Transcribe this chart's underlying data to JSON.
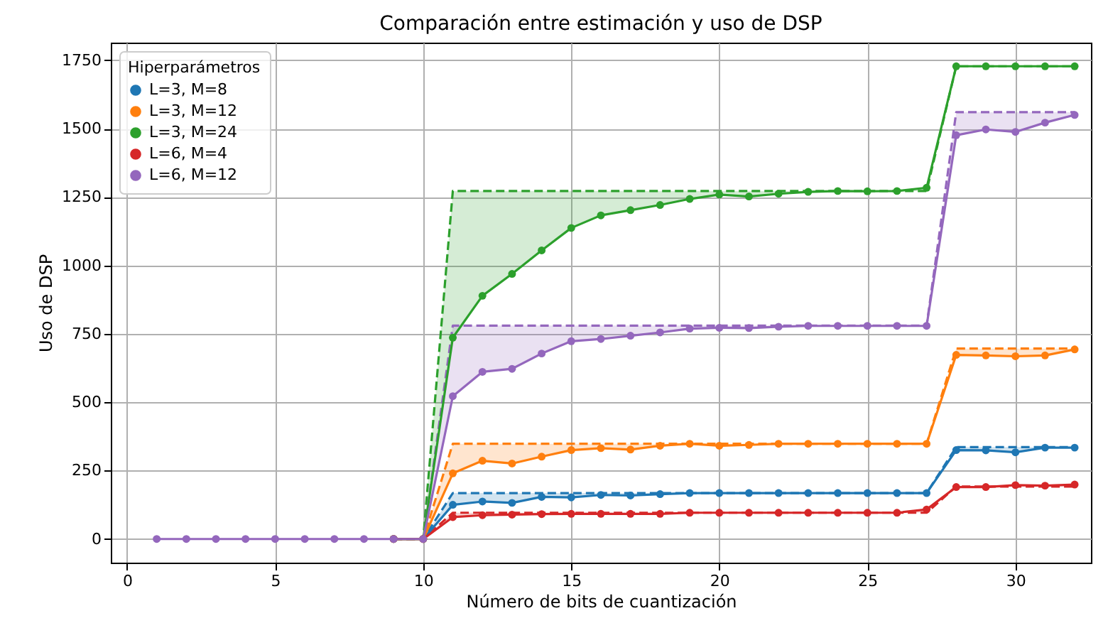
{
  "chart_data": {
    "type": "line",
    "title": "Comparación entre estimación y uso de DSP",
    "xlabel": "Número de bits de cuantización",
    "ylabel": "Uso de DSP",
    "legend_title": "Hiperparámetros",
    "legend": "top left",
    "grid": true,
    "marker": "circle",
    "line_style": "solid",
    "x": [
      1,
      2,
      3,
      4,
      5,
      6,
      7,
      8,
      9,
      10,
      11,
      12,
      13,
      14,
      15,
      16,
      17,
      18,
      19,
      20,
      21,
      22,
      23,
      24,
      25,
      26,
      27,
      28,
      29,
      30,
      31,
      32
    ],
    "xlim": [
      -0.55,
      32.55
    ],
    "xticks": [
      0,
      5,
      10,
      15,
      20,
      25,
      30
    ],
    "ylim": [
      -86.4,
      1814.4
    ],
    "yticks": [
      0,
      250,
      500,
      750,
      {
        "value": 1000,
        "label": "1000"
      },
      {
        "value": 1250,
        "label": "1250"
      },
      {
        "value": 1500,
        "label": "1500"
      },
      {
        "value": 1750,
        "label": "1750"
      }
    ],
    "series": [
      {
        "name": "L=3, M=8",
        "color": "#1f77b4",
        "values": [
          null,
          null,
          null,
          null,
          null,
          null,
          null,
          null,
          0,
          0,
          125,
          137,
          132,
          154,
          152,
          161,
          159,
          164,
          168,
          168,
          168,
          168,
          168,
          168,
          168,
          168,
          168,
          325,
          324,
          317,
          334,
          334
        ],
        "lower": [
          null,
          null,
          null,
          null,
          null,
          null,
          null,
          null,
          0,
          0,
          125,
          137,
          132,
          154,
          152,
          161,
          159,
          164,
          168,
          168,
          168,
          168,
          168,
          168,
          168,
          168,
          168,
          325,
          324,
          317,
          334,
          334
        ],
        "upper": [
          null,
          null,
          null,
          null,
          null,
          null,
          null,
          null,
          0,
          0,
          168,
          168,
          168,
          168,
          168,
          168,
          168,
          168,
          168,
          168,
          168,
          168,
          168,
          168,
          168,
          168,
          168,
          336,
          336,
          336,
          336,
          336
        ]
      },
      {
        "name": "L=3, M=12",
        "color": "#ff7f0e",
        "values": [
          null,
          null,
          null,
          null,
          null,
          null,
          null,
          null,
          0,
          0,
          240,
          286,
          276,
          301,
          325,
          332,
          327,
          341,
          348,
          341,
          344,
          348,
          348,
          348,
          348,
          348,
          348,
          673,
          671,
          668,
          671,
          693
        ],
        "lower": [
          null,
          null,
          null,
          null,
          null,
          null,
          null,
          null,
          0,
          0,
          240,
          286,
          276,
          301,
          325,
          332,
          327,
          341,
          348,
          341,
          344,
          348,
          348,
          348,
          348,
          348,
          348,
          673,
          671,
          668,
          671,
          693
        ],
        "upper": [
          null,
          null,
          null,
          null,
          null,
          null,
          null,
          null,
          0,
          0,
          348,
          348,
          348,
          348,
          348,
          348,
          348,
          348,
          348,
          348,
          348,
          348,
          348,
          348,
          348,
          348,
          348,
          696,
          696,
          696,
          696,
          696
        ]
      },
      {
        "name": "L=3, M=24",
        "color": "#2ca02c",
        "values": [
          null,
          null,
          null,
          null,
          null,
          null,
          null,
          null,
          0,
          0,
          736,
          889,
          969,
          1055,
          1137,
          1183,
          1202,
          1221,
          1243,
          1259,
          1252,
          1262,
          1269,
          1272,
          1271,
          1272,
          1284,
          1728,
          1728,
          1728,
          1728,
          1728
        ],
        "lower": [
          null,
          null,
          null,
          null,
          null,
          null,
          null,
          null,
          0,
          0,
          736,
          889,
          969,
          1055,
          1137,
          1183,
          1202,
          1221,
          1243,
          1259,
          1252,
          1262,
          1269,
          1272,
          1271,
          1272,
          1284,
          1728,
          1728,
          1728,
          1728,
          1728
        ],
        "upper": [
          null,
          null,
          null,
          null,
          null,
          null,
          null,
          null,
          0,
          0,
          1272,
          1272,
          1272,
          1272,
          1272,
          1272,
          1272,
          1272,
          1272,
          1272,
          1272,
          1272,
          1272,
          1272,
          1272,
          1272,
          1272,
          1728,
          1728,
          1728,
          1728,
          1728
        ]
      },
      {
        "name": "L=6, M=4",
        "color": "#d62728",
        "values": [
          null,
          null,
          null,
          null,
          null,
          null,
          null,
          null,
          0,
          0,
          80,
          87,
          89,
          91,
          92,
          92,
          92,
          92,
          96,
          96,
          96,
          96,
          96,
          96,
          96,
          96,
          108,
          190,
          190,
          197,
          195,
          199
        ],
        "lower": [
          null,
          null,
          null,
          null,
          null,
          null,
          null,
          null,
          0,
          0,
          80,
          87,
          89,
          91,
          92,
          92,
          92,
          92,
          96,
          96,
          96,
          96,
          96,
          96,
          96,
          96,
          108,
          190,
          190,
          197,
          195,
          199
        ],
        "upper": [
          null,
          null,
          null,
          null,
          null,
          null,
          null,
          null,
          0,
          0,
          96,
          96,
          96,
          96,
          96,
          96,
          96,
          96,
          96,
          96,
          96,
          96,
          96,
          96,
          96,
          96,
          96,
          192,
          192,
          192,
          192,
          192
        ]
      },
      {
        "name": "L=6, M=12",
        "color": "#9467bd",
        "values": [
          0,
          0,
          0,
          0,
          0,
          0,
          0,
          0,
          0,
          0,
          522,
          611,
          622,
          678,
          723,
          731,
          743,
          755,
          769,
          772,
          771,
          776,
          779,
          779,
          779,
          779,
          779,
          1476,
          1497,
          1488,
          1522,
          1550
        ],
        "lower": [
          null,
          null,
          null,
          null,
          null,
          null,
          null,
          null,
          0,
          0,
          522,
          611,
          622,
          678,
          723,
          731,
          743,
          755,
          769,
          772,
          771,
          776,
          779,
          779,
          779,
          779,
          779,
          1476,
          1497,
          1488,
          1522,
          1550
        ],
        "upper": [
          null,
          null,
          null,
          null,
          null,
          null,
          null,
          null,
          0,
          0,
          780,
          780,
          780,
          780,
          780,
          780,
          780,
          780,
          780,
          780,
          780,
          780,
          780,
          780,
          780,
          780,
          780,
          1560,
          1560,
          1560,
          1560,
          1560
        ]
      },
      {
        "color": "#1f77b4",
        "line_style": "dashed",
        "marker": "none",
        "values": [
          null,
          null,
          null,
          null,
          null,
          null,
          null,
          null,
          0,
          0,
          168,
          168,
          168,
          168,
          168,
          168,
          168,
          168,
          168,
          168,
          168,
          168,
          168,
          168,
          168,
          168,
          168,
          336,
          336,
          336,
          336,
          336
        ]
      },
      {
        "color": "#ff7f0e",
        "line_style": "dashed",
        "marker": "none",
        "values": [
          null,
          null,
          null,
          null,
          null,
          null,
          null,
          null,
          0,
          0,
          348,
          348,
          348,
          348,
          348,
          348,
          348,
          348,
          348,
          348,
          348,
          348,
          348,
          348,
          348,
          348,
          348,
          696,
          696,
          696,
          696,
          696
        ]
      },
      {
        "color": "#2ca02c",
        "line_style": "dashed",
        "marker": "none",
        "values": [
          null,
          null,
          null,
          null,
          null,
          null,
          null,
          null,
          0,
          0,
          1272,
          1272,
          1272,
          1272,
          1272,
          1272,
          1272,
          1272,
          1272,
          1272,
          1272,
          1272,
          1272,
          1272,
          1272,
          1272,
          1272,
          1728,
          1728,
          1728,
          1728,
          1728
        ]
      },
      {
        "color": "#d62728",
        "line_style": "dashed",
        "marker": "none",
        "values": [
          null,
          null,
          null,
          null,
          null,
          null,
          null,
          null,
          0,
          0,
          96,
          96,
          96,
          96,
          96,
          96,
          96,
          96,
          96,
          96,
          96,
          96,
          96,
          96,
          96,
          96,
          96,
          192,
          192,
          192,
          192,
          192
        ]
      },
      {
        "color": "#9467bd",
        "line_style": "dashed",
        "marker": "none",
        "values": [
          null,
          null,
          null,
          null,
          null,
          null,
          null,
          null,
          0,
          0,
          780,
          780,
          780,
          780,
          780,
          780,
          780,
          780,
          780,
          780,
          780,
          780,
          780,
          780,
          780,
          780,
          780,
          1560,
          1560,
          1560,
          1560,
          1560
        ]
      }
    ]
  }
}
